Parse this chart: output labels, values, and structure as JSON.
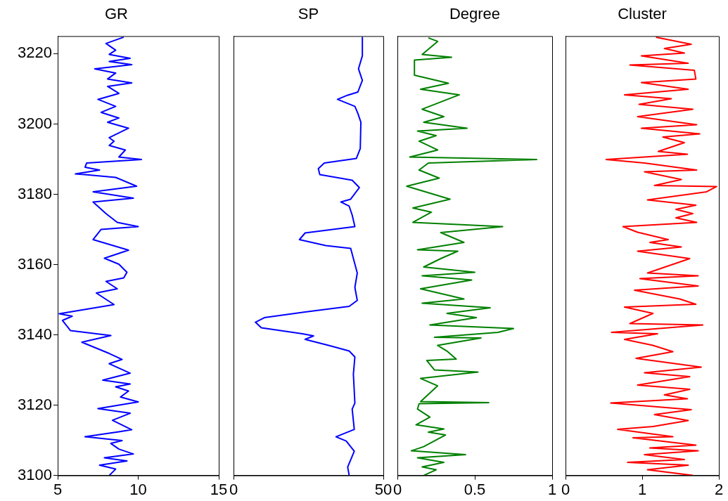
{
  "chart_data": [
    {
      "type": "line",
      "title": "GR",
      "xlim": [
        5,
        15
      ],
      "xticks": [
        5,
        10,
        15
      ],
      "ylim": [
        3100,
        3225
      ],
      "yticks": [
        3100,
        3120,
        3140,
        3160,
        3180,
        3200,
        3220
      ],
      "series": [
        {
          "color": "#0000ff",
          "x": [
            8.2,
            8.6,
            7.6,
            9.3,
            7.9,
            9.7,
            8.8,
            8.3,
            9.0,
            6.7,
            8.8,
            9.6,
            8.4,
            9.5,
            7.5,
            10.0,
            8.9,
            9.4,
            8.6,
            9.5,
            7.8,
            9.5,
            8.2,
            9.0,
            8.2,
            6.5,
            8.3,
            5.8,
            5.3,
            5.9,
            5.1,
            8.5,
            7.4,
            8.7,
            8.0,
            9.1,
            9.3,
            8.8,
            7.9,
            9.4,
            7.2,
            7.7,
            10.0,
            8.7,
            8.0,
            7.2,
            9.7,
            7.2,
            9.9,
            8.6,
            6.7,
            6.1,
            7.6,
            6.7,
            6.8,
            10.2,
            8.8,
            9.2,
            8.2,
            8.5,
            8.2,
            9.4,
            8.1,
            8.8,
            7.7,
            8.6,
            7.5,
            8.8,
            8.1,
            9.6,
            8.1,
            8.6,
            7.3,
            9.6,
            8.2,
            9.5,
            8.2,
            8.6,
            8.0,
            9.1
          ],
          "values": [
            3100,
            3101.8,
            3102.9,
            3104.1,
            3105,
            3106.1,
            3107.5,
            3109.1,
            3109.9,
            3111,
            3112.4,
            3113,
            3115.7,
            3117.7,
            3119,
            3120.9,
            3122.3,
            3124,
            3125.2,
            3126,
            3127.1,
            3129.1,
            3131.8,
            3133,
            3134.7,
            3137.9,
            3139.8,
            3141.2,
            3144.1,
            3145.3,
            3146,
            3148.6,
            3151.9,
            3153.1,
            3155.2,
            3156.2,
            3157.8,
            3160.1,
            3161.8,
            3164.1,
            3167.1,
            3170,
            3170.8,
            3172,
            3174.5,
            3177.8,
            3178.9,
            3180.7,
            3182.3,
            3184.8,
            3185.6,
            3185.8,
            3186.9,
            3187.7,
            3188.9,
            3189.9,
            3190.6,
            3192.6,
            3193.9,
            3195.1,
            3196.1,
            3198.8,
            3200.5,
            3201.7,
            3203.3,
            3205,
            3207,
            3208.7,
            3210.7,
            3211.7,
            3212.8,
            3214.5,
            3215.7,
            3216.9,
            3217.8,
            3218.7,
            3219.8,
            3221,
            3222.9,
            3224.7
          ]
        }
      ]
    },
    {
      "type": "line",
      "title": "SP",
      "xlim": [
        0,
        50
      ],
      "xticks": [
        0,
        50
      ],
      "ylim": [
        3100,
        3225
      ],
      "yticks": [
        3100,
        3120,
        3140,
        3160,
        3180,
        3200,
        3220
      ],
      "tick_labels": "x",
      "series": [
        {
          "color": "#0000ff",
          "x": [
            38.6,
            38.1,
            40.3,
            37.6,
            34.2,
            40.3,
            39.6,
            40.5,
            40.0,
            40.5,
            38.6,
            31.7,
            23.9,
            26.7,
            23.0,
            9.3,
            7.3,
            10.3,
            23.9,
            38.6,
            41.3,
            40.5,
            41.3,
            39.1,
            30.8,
            22.0,
            23.9,
            40.5,
            39.6,
            38.6,
            35.8,
            39.1,
            42.0,
            39.6,
            28.8,
            28.3,
            30.3,
            41.0,
            42.3,
            42.5,
            41.5,
            40.5,
            34.7,
            38.1,
            41.5,
            43.0,
            41.7,
            43.0,
            43.0
          ],
          "values": [
            3100,
            3102.4,
            3106.9,
            3109.8,
            3111,
            3113.1,
            3118.9,
            3120.6,
            3128.8,
            3133.7,
            3135.4,
            3137,
            3138.7,
            3139.7,
            3140.3,
            3142,
            3143.6,
            3144.9,
            3146.5,
            3148.1,
            3149.8,
            3153.5,
            3157.6,
            3164.6,
            3165.4,
            3167.1,
            3169,
            3170.8,
            3174.1,
            3176.6,
            3177.8,
            3178.6,
            3181.9,
            3184,
            3185.6,
            3187.3,
            3188.9,
            3190.2,
            3193,
            3200.5,
            3203,
            3205,
            3207,
            3208.2,
            3209.1,
            3212.4,
            3215.7,
            3219.4,
            3224.8
          ]
        }
      ]
    },
    {
      "type": "line",
      "title": "Degree",
      "xlim": [
        0,
        1
      ],
      "xticks": [
        0,
        0.5,
        1
      ],
      "ylim": [
        3100,
        3225
      ],
      "yticks": [
        3100,
        3120,
        3140,
        3160,
        3180,
        3200,
        3220
      ],
      "tick_labels": "x",
      "series": [
        {
          "color": "#008000",
          "x": [
            0.17,
            0.25,
            0.16,
            0.3,
            0.13,
            0.44,
            0.09,
            0.17,
            0.31,
            0.2,
            0.3,
            0.12,
            0.21,
            0.13,
            0.14,
            0.59,
            0.15,
            0.26,
            0.15,
            0.52,
            0.24,
            0.19,
            0.38,
            0.32,
            0.26,
            0.54,
            0.24,
            0.65,
            0.75,
            0.21,
            0.51,
            0.32,
            0.6,
            0.16,
            0.43,
            0.15,
            0.48,
            0.16,
            0.5,
            0.17,
            0.28,
            0.39,
            0.13,
            0.43,
            0.28,
            0.68,
            0.1,
            0.22,
            0.1,
            0.34,
            0.06,
            0.27,
            0.14,
            0.2,
            0.9,
            0.08,
            0.26,
            0.14,
            0.25,
            0.13,
            0.45,
            0.17,
            0.3,
            0.16,
            0.4,
            0.15,
            0.33,
            0.11,
            0.11,
            0.35,
            0.16,
            0.26,
            0.2
          ],
          "values": [
            3100,
            3101.6,
            3102.4,
            3103.7,
            3105,
            3105.9,
            3107,
            3108.2,
            3111.5,
            3112.3,
            3113.2,
            3114.4,
            3116.6,
            3118.9,
            3120.4,
            3120.7,
            3121,
            3125.5,
            3127.6,
            3129.4,
            3130,
            3132.7,
            3133.1,
            3135.4,
            3137,
            3139.1,
            3139.3,
            3140.7,
            3141.8,
            3142.8,
            3144.9,
            3146.1,
            3147.7,
            3149,
            3150.2,
            3153.1,
            3155.6,
            3156.8,
            3157.8,
            3159.3,
            3161.7,
            3163.8,
            3164.2,
            3166.3,
            3169.1,
            3170.8,
            3172,
            3174.9,
            3176.1,
            3178.6,
            3182.3,
            3184.6,
            3186.9,
            3188.9,
            3189.9,
            3190.6,
            3192.6,
            3195.1,
            3196.7,
            3198,
            3198.8,
            3200.5,
            3202.1,
            3204.2,
            3208.3,
            3209.9,
            3211.6,
            3213.9,
            3218.2,
            3219,
            3219.8,
            3223.5,
            3224.5
          ]
        }
      ]
    },
    {
      "type": "line",
      "title": "Cluster",
      "xlim": [
        0,
        2
      ],
      "xticks": [
        0,
        1,
        2
      ],
      "ylim": [
        3100,
        3225
      ],
      "yticks": [
        3100,
        3120,
        3140,
        3160,
        3180,
        3200,
        3220
      ],
      "tick_labels": "x",
      "series": [
        {
          "color": "#ff0000",
          "x": [
            1.66,
            1.07,
            1.6,
            0.81,
            1.55,
            1.03,
            1.73,
            1.1,
            1.7,
            0.88,
            1.4,
            0.68,
            1.14,
            1.6,
            1.16,
            1.64,
            0.59,
            1.59,
            1.29,
            1.62,
            0.94,
            1.62,
            1.03,
            1.77,
            0.92,
            1.4,
            1.14,
            0.77,
            1.2,
            0.6,
            1.79,
            0.84,
            1.14,
            0.77,
            1.7,
            1.49,
            0.9,
            1.73,
            0.97,
            1.73,
            1.07,
            1.62,
            0.94,
            1.51,
            1.1,
            1.34,
            0.94,
            0.75,
            1.71,
            1.44,
            1.66,
            1.44,
            1.7,
            1.07,
            1.84,
            1.97,
            1.16,
            1.51,
            1.03,
            1.71,
            1.03,
            0.53,
            1.59,
            1.21,
            1.55,
            1.27,
            1.75,
            0.99,
            1.71,
            0.94,
            1.66,
            0.96,
            1.38,
            0.77,
            1.6,
            0.99,
            1.7,
            1.68,
            0.84,
            1.6,
            0.99,
            1.55,
            1.29,
            1.64,
            1.18
          ],
          "values": [
            3100,
            3101.6,
            3102.9,
            3103.7,
            3104.5,
            3105.9,
            3107,
            3107.8,
            3108.6,
            3110.7,
            3111,
            3113.1,
            3113.9,
            3115.6,
            3117.3,
            3118.7,
            3120.6,
            3121.8,
            3122.9,
            3124.5,
            3125.7,
            3128.1,
            3129.2,
            3130.8,
            3133.3,
            3135.2,
            3137,
            3138.7,
            3140.3,
            3140.7,
            3142.8,
            3143.2,
            3146.1,
            3147.9,
            3148.7,
            3150.2,
            3152.7,
            3153.9,
            3156,
            3156.8,
            3157.6,
            3161.7,
            3163.8,
            3165,
            3166.3,
            3167.1,
            3169.2,
            3170.8,
            3172,
            3173.3,
            3174.5,
            3175.7,
            3176.9,
            3178.4,
            3180.7,
            3182.2,
            3182.5,
            3184.2,
            3186.4,
            3186.9,
            3188.9,
            3189.9,
            3191.4,
            3192.2,
            3194.7,
            3196.3,
            3197.2,
            3198.8,
            3199.8,
            3202.1,
            3204.2,
            3205.6,
            3207.2,
            3208.3,
            3209.9,
            3211.8,
            3212.8,
            3215.3,
            3216.8,
            3217.3,
            3219.4,
            3220.2,
            3221.5,
            3222.7,
            3224.7
          ]
        }
      ]
    }
  ]
}
